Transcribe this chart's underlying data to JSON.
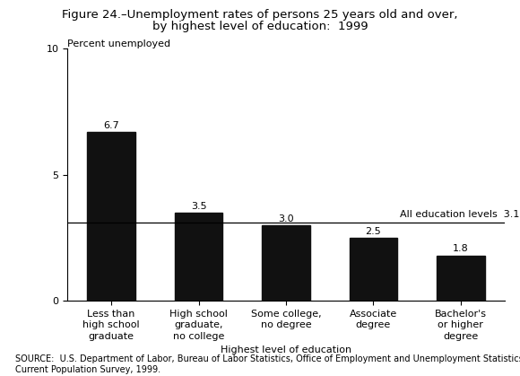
{
  "title_line1": "Figure 24.–Unemployment rates of persons 25 years old and over,",
  "title_line2": "by highest level of education:  1999",
  "ylabel": "Percent unemployed",
  "xlabel": "Highest level of education",
  "categories": [
    "Less than\nhigh school\ngraduate",
    "High school\ngraduate,\nno college",
    "Some college,\nno degree",
    "Associate\ndegree",
    "Bachelor's\nor higher\ndegree"
  ],
  "values": [
    6.7,
    3.5,
    3.0,
    2.5,
    1.8
  ],
  "bar_color": "#111111",
  "reference_line_value": 3.1,
  "reference_line_label": "All education levels  3.1",
  "ylim": [
    0,
    10
  ],
  "yticks": [
    0,
    5,
    10
  ],
  "source_text": "SOURCE:  U.S. Department of Labor, Bureau of Labor Statistics, Office of Employment and Unemployment Statistics,\nCurrent Population Survey, 1999.",
  "background_color": "#ffffff",
  "value_label_fontsize": 8,
  "title_fontsize": 9.5,
  "axis_label_fontsize": 8,
  "tick_label_fontsize": 8,
  "source_fontsize": 7,
  "ref_label_fontsize": 8
}
